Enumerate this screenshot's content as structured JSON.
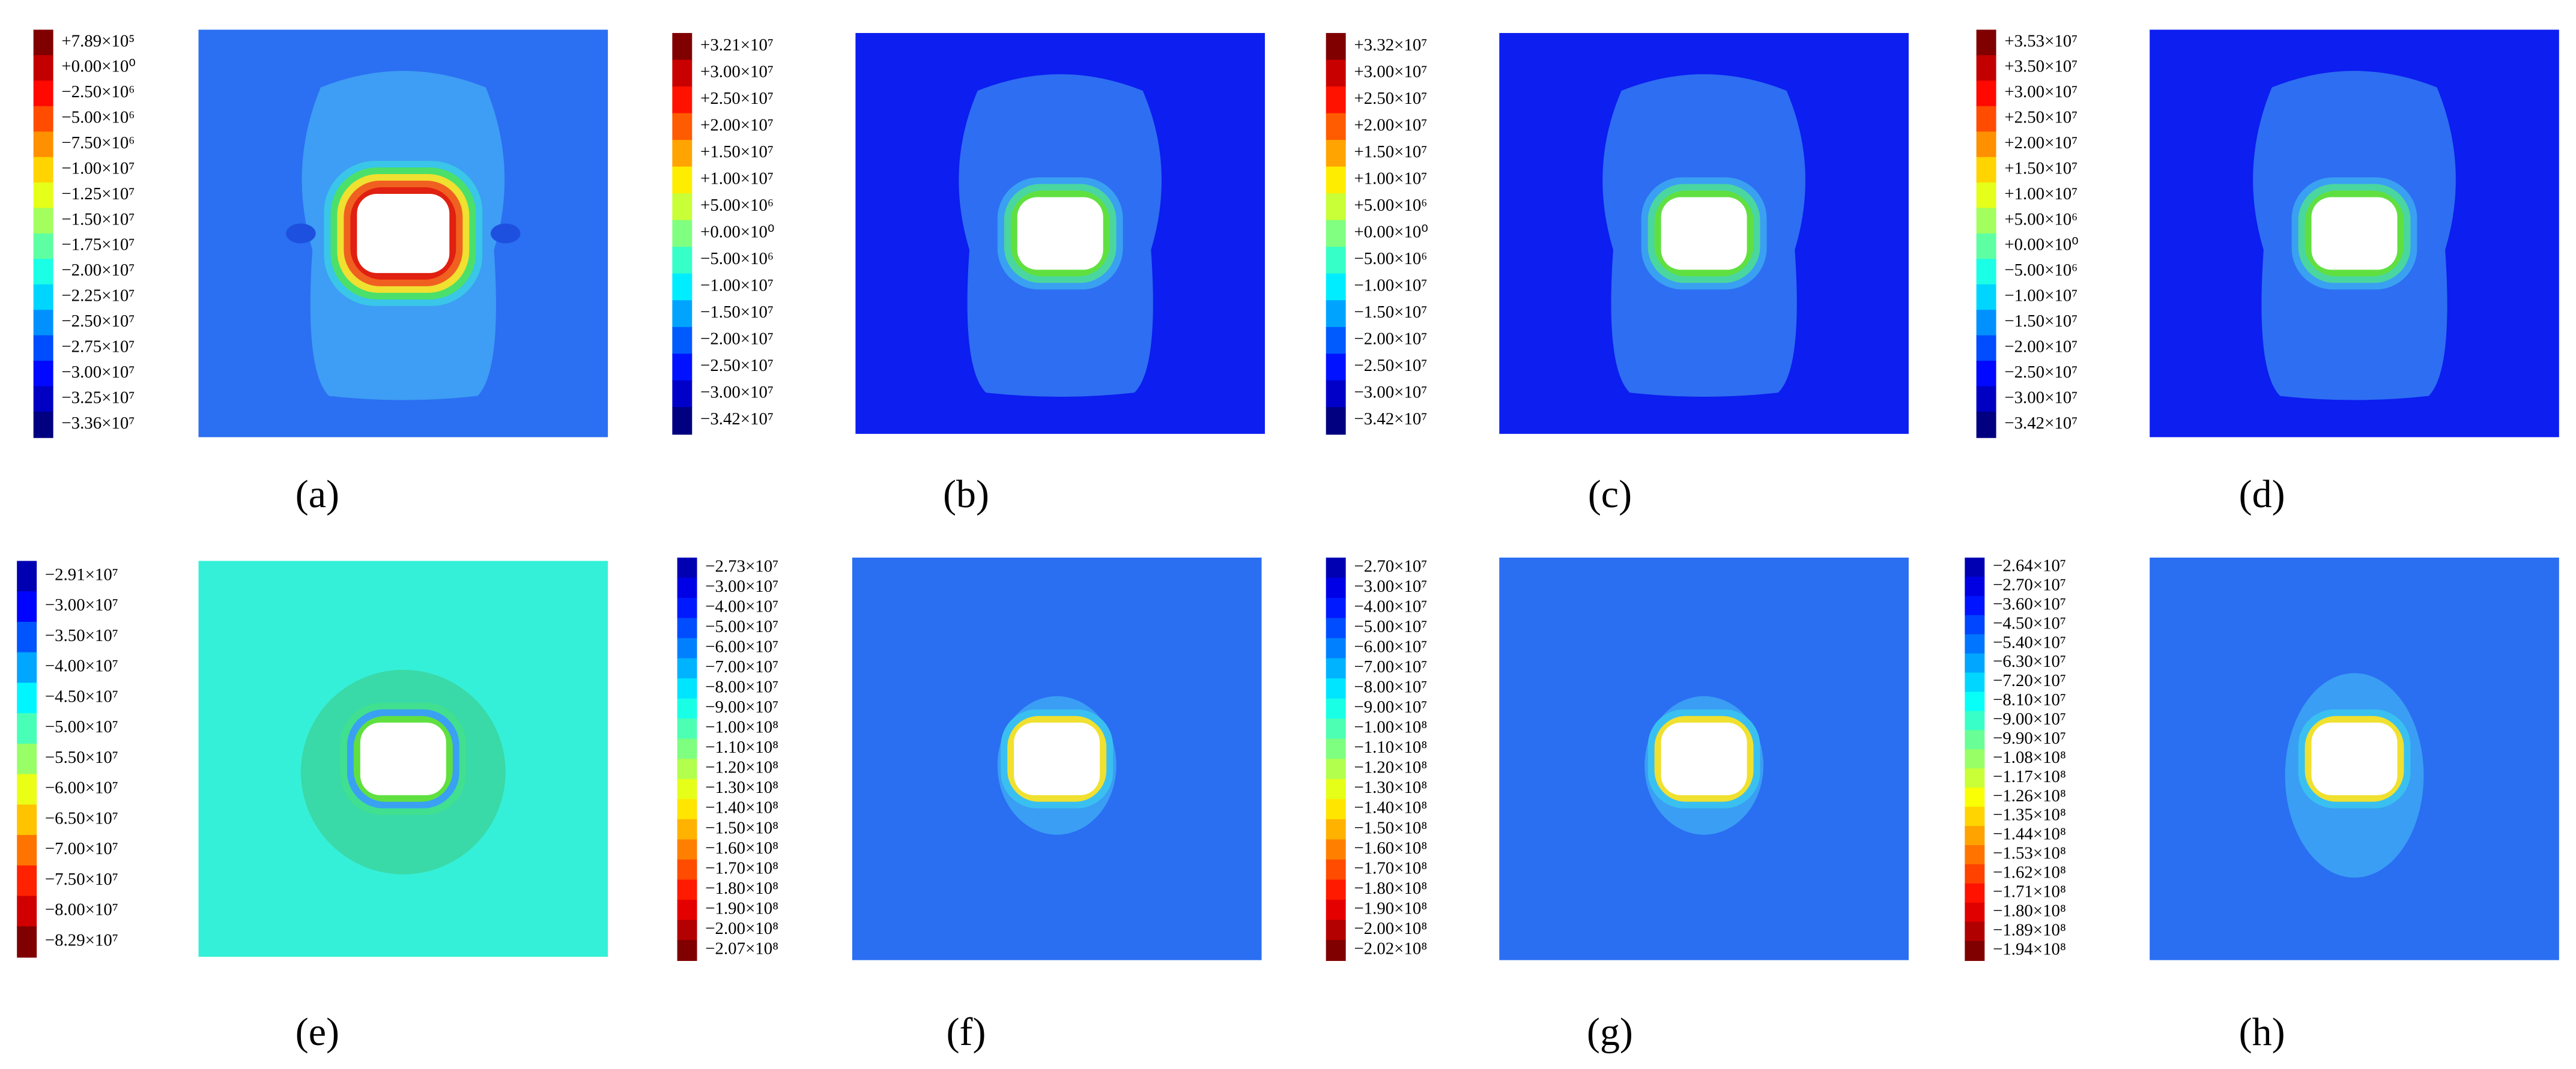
{
  "panels": [
    {
      "caption": "(a)",
      "legend": [
        "+7.89×10⁵",
        "+0.00×10⁰",
        "−2.50×10⁶",
        "−5.00×10⁶",
        "−7.50×10⁶",
        "−1.00×10⁷",
        "−1.25×10⁷",
        "−1.50×10⁷",
        "−1.75×10⁷",
        "−2.00×10⁷",
        "−2.25×10⁷",
        "−2.50×10⁷",
        "−2.75×10⁷",
        "−3.00×10⁷",
        "−3.25×10⁷",
        "−3.36×10⁷"
      ]
    },
    {
      "caption": "(b)",
      "legend": [
        "+3.21×10⁷",
        "+3.00×10⁷",
        "+2.50×10⁷",
        "+2.00×10⁷",
        "+1.50×10⁷",
        "+1.00×10⁷",
        "+5.00×10⁶",
        "+0.00×10⁰",
        "−5.00×10⁶",
        "−1.00×10⁷",
        "−1.50×10⁷",
        "−2.00×10⁷",
        "−2.50×10⁷",
        "−3.00×10⁷",
        "−3.42×10⁷"
      ]
    },
    {
      "caption": "(c)",
      "legend": [
        "+3.32×10⁷",
        "+3.00×10⁷",
        "+2.50×10⁷",
        "+2.00×10⁷",
        "+1.50×10⁷",
        "+1.00×10⁷",
        "+5.00×10⁶",
        "+0.00×10⁰",
        "−5.00×10⁶",
        "−1.00×10⁷",
        "−1.50×10⁷",
        "−2.00×10⁷",
        "−2.50×10⁷",
        "−3.00×10⁷",
        "−3.42×10⁷"
      ]
    },
    {
      "caption": "(d)",
      "legend": [
        "+3.53×10⁷",
        "+3.50×10⁷",
        "+3.00×10⁷",
        "+2.50×10⁷",
        "+2.00×10⁷",
        "+1.50×10⁷",
        "+1.00×10⁷",
        "+5.00×10⁶",
        "+0.00×10⁰",
        "−5.00×10⁶",
        "−1.00×10⁷",
        "−1.50×10⁷",
        "−2.00×10⁷",
        "−2.50×10⁷",
        "−3.00×10⁷",
        "−3.42×10⁷"
      ]
    },
    {
      "caption": "(e)",
      "legend": [
        "−2.91×10⁷",
        "−3.00×10⁷",
        "−3.50×10⁷",
        "−4.00×10⁷",
        "−4.50×10⁷",
        "−5.00×10⁷",
        "−5.50×10⁷",
        "−6.00×10⁷",
        "−6.50×10⁷",
        "−7.00×10⁷",
        "−7.50×10⁷",
        "−8.00×10⁷",
        "−8.29×10⁷"
      ]
    },
    {
      "caption": "(f)",
      "legend": [
        "−2.73×10⁷",
        "−3.00×10⁷",
        "−4.00×10⁷",
        "−5.00×10⁷",
        "−6.00×10⁷",
        "−7.00×10⁷",
        "−8.00×10⁷",
        "−9.00×10⁷",
        "−1.00×10⁸",
        "−1.10×10⁸",
        "−1.20×10⁸",
        "−1.30×10⁸",
        "−1.40×10⁸",
        "−1.50×10⁸",
        "−1.60×10⁸",
        "−1.70×10⁸",
        "−1.80×10⁸",
        "−1.90×10⁸",
        "−2.00×10⁸",
        "−2.07×10⁸"
      ]
    },
    {
      "caption": "(g)",
      "legend": [
        "−2.70×10⁷",
        "−3.00×10⁷",
        "−4.00×10⁷",
        "−5.00×10⁷",
        "−6.00×10⁷",
        "−7.00×10⁷",
        "−8.00×10⁷",
        "−9.00×10⁷",
        "−1.00×10⁸",
        "−1.10×10⁸",
        "−1.20×10⁸",
        "−1.30×10⁸",
        "−1.40×10⁸",
        "−1.50×10⁸",
        "−1.60×10⁸",
        "−1.70×10⁸",
        "−1.80×10⁸",
        "−1.90×10⁸",
        "−2.00×10⁸",
        "−2.02×10⁸"
      ]
    },
    {
      "caption": "(h)",
      "legend": [
        "−2.64×10⁷",
        "−2.70×10⁷",
        "−3.60×10⁷",
        "−4.50×10⁷",
        "−5.40×10⁷",
        "−6.30×10⁷",
        "−7.20×10⁷",
        "−8.10×10⁷",
        "−9.00×10⁷",
        "−9.90×10⁷",
        "−1.08×10⁸",
        "−1.17×10⁸",
        "−1.26×10⁸",
        "−1.35×10⁸",
        "−1.44×10⁸",
        "−1.53×10⁸",
        "−1.62×10⁸",
        "−1.71×10⁸",
        "−1.80×10⁸",
        "−1.89×10⁸",
        "−1.94×10⁸"
      ]
    }
  ]
}
